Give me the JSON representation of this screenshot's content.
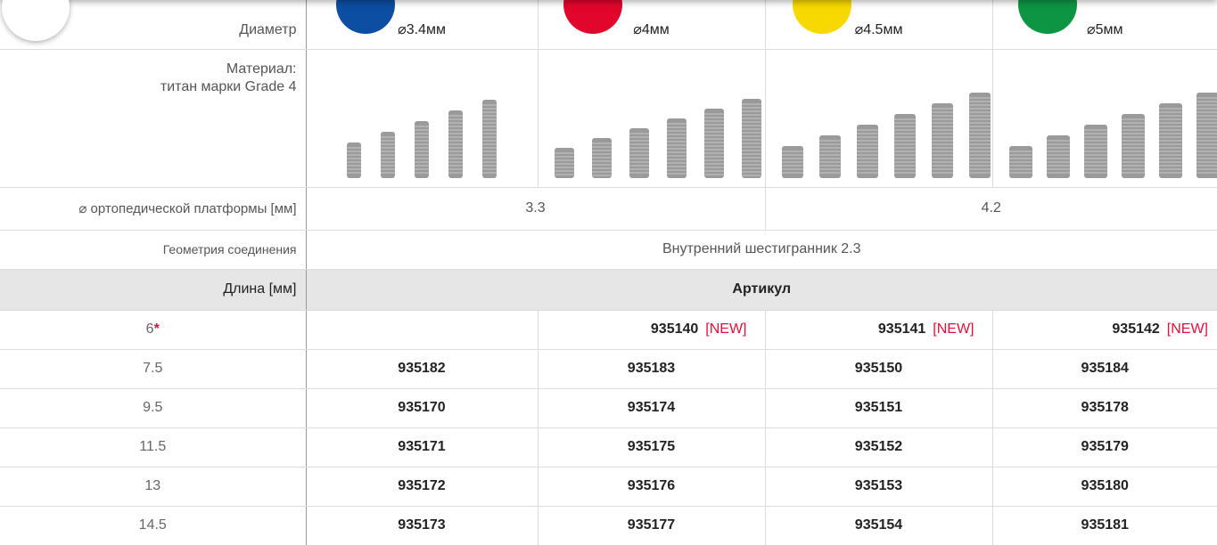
{
  "table": {
    "diameter_label": "Диаметр",
    "diameters": [
      "⌀3.4мм",
      "⌀4мм",
      "⌀4.5мм",
      "⌀5мм"
    ],
    "material_label": [
      "Материал:",
      "титан марки Grade 4"
    ],
    "platform_label": "⌀ ортопедической платформы [мм]",
    "platforms": [
      "3.3",
      "4.2"
    ],
    "connection_label": "Геометрия соединения",
    "connection": "Внутренний шестигранник 2.3",
    "length_header": "Длина [мм]",
    "article_header": "Артикул",
    "rows": [
      {
        "length": "6",
        "mark": "*",
        "cells": [
          null,
          {
            "code": "935140",
            "flag": "[NEW]"
          },
          {
            "code": "935141",
            "flag": "[NEW]"
          },
          {
            "code": "935142",
            "flag": "[NEW]"
          }
        ]
      },
      {
        "length": "7.5",
        "cells": [
          {
            "code": "935182"
          },
          {
            "code": "935183"
          },
          {
            "code": "935150"
          },
          {
            "code": "935184"
          }
        ]
      },
      {
        "length": "9.5",
        "cells": [
          {
            "code": "935170"
          },
          {
            "code": "935174"
          },
          {
            "code": "935151"
          },
          {
            "code": "935178"
          }
        ]
      },
      {
        "length": "11.5",
        "cells": [
          {
            "code": "935171"
          },
          {
            "code": "935175"
          },
          {
            "code": "935152"
          },
          {
            "code": "935179"
          }
        ]
      },
      {
        "length": "13",
        "cells": [
          {
            "code": "935172"
          },
          {
            "code": "935176"
          },
          {
            "code": "935153"
          },
          {
            "code": "935180"
          }
        ]
      },
      {
        "length": "14.5",
        "cells": [
          {
            "code": "935173"
          },
          {
            "code": "935177"
          },
          {
            "code": "935154"
          },
          {
            "code": "935181"
          }
        ]
      }
    ]
  }
}
